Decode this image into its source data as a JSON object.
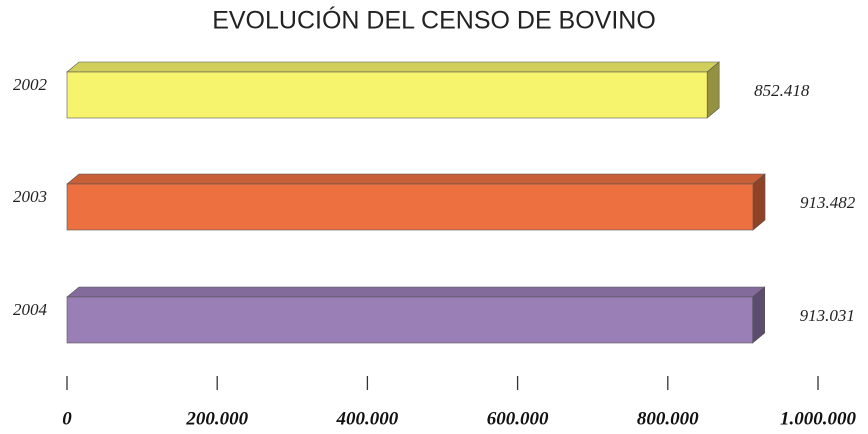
{
  "chart_data": {
    "type": "bar3d-horizontal",
    "title": "EVOLUCIÓN DEL CENSO DE BOVINO",
    "categories": [
      "2002",
      "2003",
      "2004"
    ],
    "values": [
      852418,
      913482,
      913031
    ],
    "value_labels": [
      "852.418",
      "913.482",
      "913.031"
    ],
    "colors": [
      "#f6f46c",
      "#ec7040",
      "#9a7fb6"
    ],
    "xlim": [
      0,
      1000000
    ],
    "xticks": [
      0,
      {
        "value": 200000,
        "label": "200.000"
      },
      {
        "value": 400000,
        "label": "400.000"
      },
      {
        "value": 600000,
        "label": "600.000"
      },
      {
        "value": 800000,
        "label": "800.000"
      },
      {
        "value": 1000000,
        "label": "1.000.000"
      }
    ]
  }
}
